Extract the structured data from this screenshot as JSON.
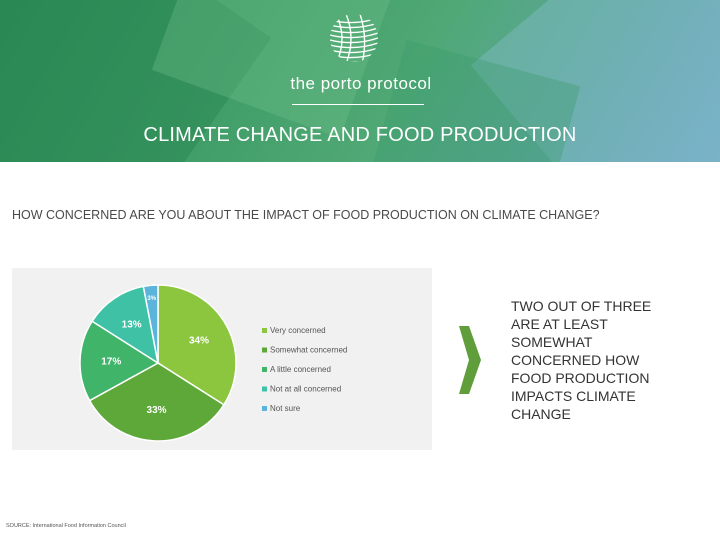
{
  "banner": {
    "logo_text": "the porto protocol",
    "title": "CLIMATE CHANGE AND FOOD PRODUCTION"
  },
  "question": "HOW CONCERNED ARE YOU ABOUT THE IMPACT OF FOOD PRODUCTION ON CLIMATE CHANGE?",
  "callout": "TWO OUT OF THREE ARE AT LEAST SOMEWHAT CONCERNED HOW FOOD PRODUCTION IMPACTS CLIMATE CHANGE",
  "source": "SOURCE: International Food Information Council",
  "colors": {
    "very_concerned": "#8cc63f",
    "somewhat_concerned": "#5da839",
    "a_little_concerned": "#40b468",
    "not_at_all_concerned": "#3fc1a5",
    "not_sure": "#5ab4dc",
    "arrow": "#5f9e3a"
  },
  "chart_data": {
    "type": "pie",
    "labels": [
      "Very concerned",
      "Somewhat concerned",
      "A little concerned",
      "Not at all concerned",
      "Not sure"
    ],
    "values": [
      34,
      33,
      17,
      13,
      3
    ],
    "data_labels": [
      "34%",
      "33%",
      "17%",
      "13%",
      "3%"
    ],
    "legend_position": "right"
  }
}
